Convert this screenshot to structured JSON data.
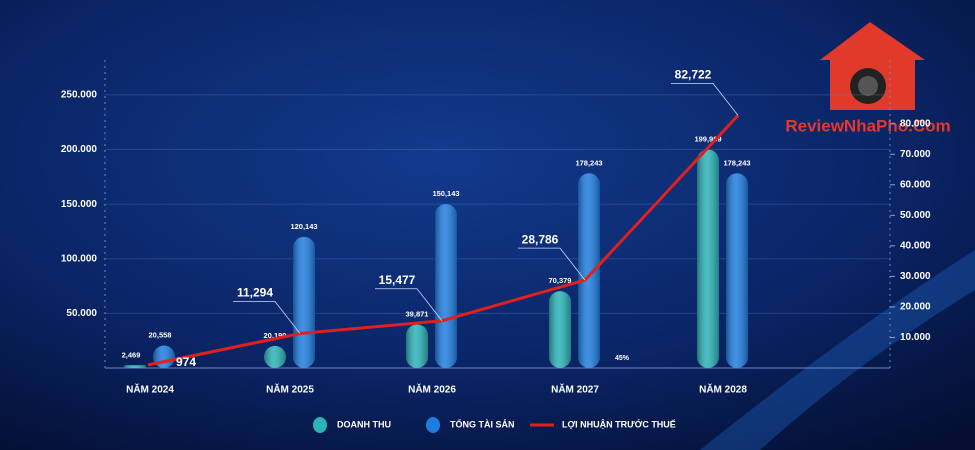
{
  "chart_data": {
    "type": "bar-line",
    "categories": [
      "NĂM 2024",
      "NĂM 2025",
      "NĂM 2026",
      "NĂM 2027",
      "NĂM 2028"
    ],
    "series": [
      {
        "name": "DOANH THU",
        "type": "bar",
        "color": "#2bb3b8",
        "values": [
          2469,
          20199,
          39871,
          70379,
          199969
        ],
        "value_labels": [
          "2,469",
          "20,199",
          "39,871",
          "70,379",
          "199,969"
        ]
      },
      {
        "name": "TỔNG TÀI SẢN",
        "type": "bar",
        "color": "#1f7de0",
        "values": [
          20558,
          120143,
          150143,
          178243,
          178243
        ],
        "value_labels": [
          "20,558",
          "120,143",
          "150,143",
          "178,243",
          "178,243"
        ]
      },
      {
        "name": "LỢI NHUẬN TRƯỚC THUẾ",
        "type": "line",
        "axis": "y2",
        "color": "#e0201e",
        "values": [
          974,
          11294,
          15477,
          28786,
          82722
        ],
        "value_labels": [
          "974",
          "11,294",
          "15,477",
          "28,786",
          "82,722"
        ]
      }
    ],
    "ylim": [
      0,
      260000
    ],
    "yticks": [
      {
        "value": 50000,
        "label": "50.000"
      },
      {
        "value": 100000,
        "label": "100.000"
      },
      {
        "value": 150000,
        "label": "150.000"
      },
      {
        "value": 200000,
        "label": "200.000"
      },
      {
        "value": 250000,
        "label": "250.000"
      }
    ],
    "y2lim": [
      0,
      93000
    ],
    "y2ticks": [
      {
        "value": 10000,
        "label": "10.000"
      },
      {
        "value": 20000,
        "label": "20.000"
      },
      {
        "value": 30000,
        "label": "30.000"
      },
      {
        "value": 40000,
        "label": "40.000"
      },
      {
        "value": 50000,
        "label": "50.000"
      },
      {
        "value": 60000,
        "label": "60.000"
      },
      {
        "value": 70000,
        "label": "70.000"
      },
      {
        "value": 80000,
        "label": "80.000"
      }
    ],
    "annotations": [
      "45%"
    ],
    "watermark": "ReviewNhaPho.Com",
    "legend": "bottom"
  }
}
